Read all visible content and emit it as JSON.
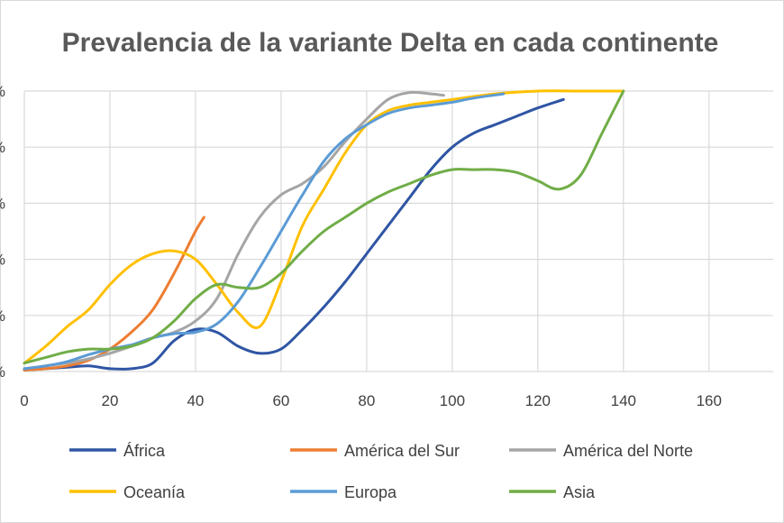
{
  "chart_data": {
    "type": "line",
    "title": "Prevalencia de la variante Delta en cada continente",
    "xlabel": "",
    "ylabel": "",
    "xlim": [
      0,
      175
    ],
    "ylim": [
      0,
      100
    ],
    "x_ticks": [
      0,
      20,
      40,
      60,
      80,
      100,
      120,
      140,
      160
    ],
    "x_tick_labels": [
      "0",
      "20",
      "40",
      "60",
      "80",
      "100",
      "120",
      "140",
      "160"
    ],
    "y_ticks": [
      0,
      20,
      40,
      60,
      80,
      100
    ],
    "y_tick_labels": [
      "%",
      "%",
      "%",
      "%",
      "%",
      "%"
    ],
    "grid": true,
    "legend_position": "bottom",
    "series": [
      {
        "name": "África",
        "color": "#2f55a4",
        "x": [
          0,
          5,
          10,
          15,
          20,
          25,
          30,
          35,
          40,
          45,
          50,
          55,
          60,
          65,
          70,
          75,
          80,
          85,
          90,
          95,
          100,
          105,
          110,
          115,
          120,
          126
        ],
        "y": [
          0.5,
          1,
          1.5,
          2,
          1,
          1,
          3,
          11,
          15,
          14,
          9,
          6.5,
          8,
          15,
          23,
          32,
          42,
          52,
          62,
          72,
          80,
          85,
          88,
          91,
          94,
          97
        ]
      },
      {
        "name": "América del Sur",
        "color": "#ed7d31",
        "x": [
          0,
          5,
          10,
          15,
          20,
          25,
          30,
          35,
          40,
          42
        ],
        "y": [
          0.5,
          1,
          2,
          4,
          8,
          14,
          22,
          35,
          50,
          55
        ]
      },
      {
        "name": "América del Norte",
        "color": "#a5a5a5",
        "x": [
          0,
          5,
          10,
          15,
          20,
          25,
          30,
          35,
          40,
          45,
          50,
          55,
          60,
          65,
          70,
          75,
          80,
          85,
          90,
          95,
          98
        ],
        "y": [
          1,
          2,
          3,
          4.5,
          6.5,
          9,
          12,
          14,
          18,
          26,
          42,
          55,
          63,
          67,
          73,
          82,
          90,
          97,
          99.5,
          99,
          98.5
        ]
      },
      {
        "name": "Oceanía",
        "color": "#ffc000",
        "x": [
          0,
          5,
          10,
          15,
          20,
          25,
          30,
          35,
          40,
          45,
          50,
          55,
          60,
          65,
          70,
          75,
          80,
          85,
          90,
          95,
          100,
          110,
          120,
          130,
          140
        ],
        "y": [
          3,
          9,
          16,
          22,
          31,
          38,
          42,
          43,
          40,
          31,
          21,
          16,
          32,
          52,
          65,
          78,
          88,
          93,
          95,
          96,
          97,
          99,
          100,
          100,
          100
        ]
      },
      {
        "name": "Europa",
        "color": "#5b9bd5",
        "x": [
          0,
          5,
          10,
          15,
          20,
          25,
          30,
          35,
          40,
          45,
          50,
          55,
          60,
          65,
          70,
          75,
          80,
          85,
          90,
          95,
          100,
          105,
          112
        ],
        "y": [
          1,
          2,
          3.5,
          6,
          8,
          9.5,
          12,
          13.5,
          14,
          17,
          25,
          37,
          50,
          63,
          75,
          83,
          88,
          92,
          94,
          95,
          96,
          97.5,
          99
        ]
      },
      {
        "name": "Asia",
        "color": "#70ad47",
        "x": [
          0,
          5,
          10,
          15,
          20,
          25,
          30,
          35,
          40,
          45,
          50,
          55,
          60,
          65,
          70,
          75,
          80,
          85,
          90,
          95,
          100,
          105,
          110,
          115,
          120,
          125,
          130,
          135,
          140
        ],
        "y": [
          3,
          5,
          7,
          8,
          8,
          9,
          12,
          18,
          26,
          31,
          30,
          30,
          35,
          43,
          50,
          55,
          60,
          64,
          67,
          70,
          72,
          72,
          72,
          71,
          68,
          65,
          70,
          85,
          100
        ]
      }
    ]
  }
}
